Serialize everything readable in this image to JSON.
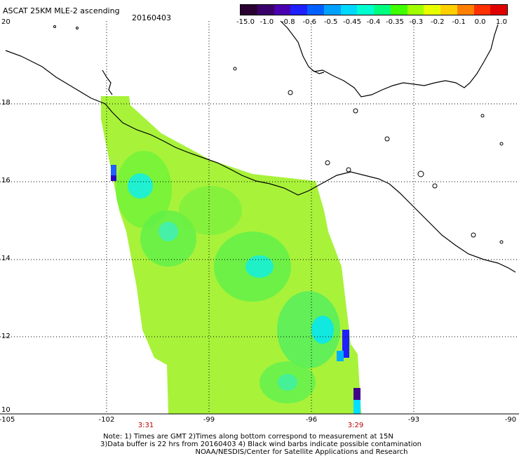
{
  "header": {
    "title": "ASCAT 25KM MLE-2 ascending",
    "date": "20160403"
  },
  "colorbar": {
    "labels": [
      "-15.0",
      "-1.0",
      "-0.8",
      "-0.6",
      "-0.5",
      "-0.45",
      "-0.4",
      "-0.35",
      "-0.3",
      "-0.2",
      "-0.1",
      "0.0",
      "1.0"
    ],
    "colors": [
      "#2a0030",
      "#3a006a",
      "#4a00b0",
      "#2020ff",
      "#0060ff",
      "#00a0ff",
      "#00d8ff",
      "#00ffd0",
      "#00ff80",
      "#40ff00",
      "#a0ff00",
      "#e8ff00",
      "#ffd000",
      "#ff8000",
      "#ff3000",
      "#e00000"
    ]
  },
  "axes": {
    "lat_labels": [
      "20",
      "18",
      "16",
      "14",
      "12",
      "10"
    ],
    "lon_labels": [
      "-105",
      "-102",
      "-99",
      "-96",
      "-93",
      "-90"
    ]
  },
  "times": {
    "left": "3:31",
    "right": "3:29"
  },
  "notes": {
    "line1": "Note: 1) Times are GMT 2)Times along bottom correspond to measurement at 15N",
    "line2": "3)Data buffer is 22 hrs from 20160403 4) Black wind barbs indicate possible contamination",
    "line3": "NOAA/NESDIS/Center for Satellite Applications and Research"
  }
}
